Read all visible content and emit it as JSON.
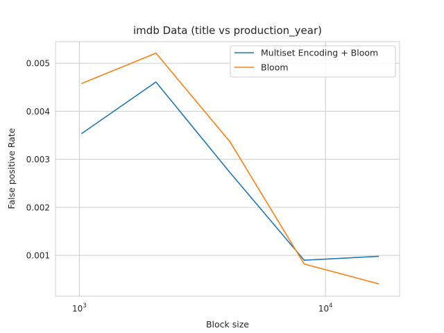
{
  "chart_data": {
    "type": "line",
    "title": "imdb Data (title vs production_year)",
    "xlabel": "Block size",
    "ylabel": "False positive Rate",
    "xscale": "log",
    "xlim": [
      800,
      20000
    ],
    "ylim": [
      0.00015,
      0.00545
    ],
    "grid": true,
    "legend_position": "top-right",
    "x": [
      1024,
      2048,
      4096,
      8192,
      16384
    ],
    "xticks": [
      {
        "value": 1000,
        "base": "10",
        "exp": "3"
      },
      {
        "value": 10000,
        "base": "10",
        "exp": "4"
      }
    ],
    "yticks": [
      {
        "value": 0.001,
        "label": "0.001"
      },
      {
        "value": 0.002,
        "label": "0.002"
      },
      {
        "value": 0.003,
        "label": "0.003"
      },
      {
        "value": 0.004,
        "label": "0.004"
      },
      {
        "value": 0.005,
        "label": "0.005"
      }
    ],
    "series": [
      {
        "name": "Multiset Encoding + Bloom",
        "color": "#1f77b4",
        "values": [
          0.00354,
          0.00461,
          0.00272,
          0.0009,
          0.00098
        ]
      },
      {
        "name": "Bloom",
        "color": "#ff7f0e",
        "values": [
          0.00458,
          0.00521,
          0.00336,
          0.00082,
          0.00041
        ]
      }
    ]
  }
}
